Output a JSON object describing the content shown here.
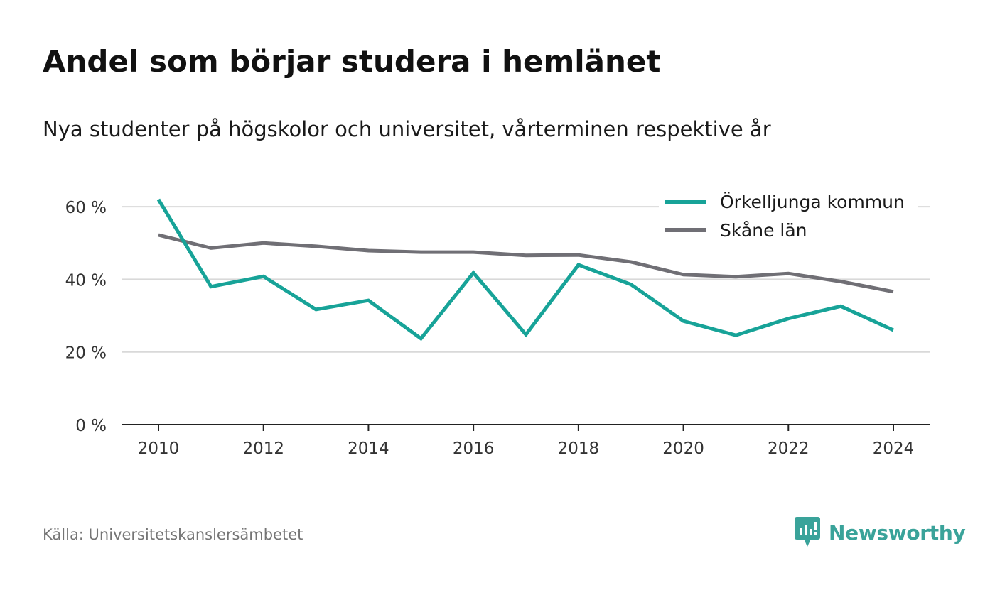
{
  "header": {
    "title": "Andel som börjar studera i hemlänet",
    "subtitle": "Nya studenter på högskolor och universitet, vårterminen respektive år"
  },
  "footer": {
    "source": "Källa: Universitetskanslersämbetet",
    "brand": "Newsworthy",
    "brand_icon": "newsworthy-logo-icon"
  },
  "colors": {
    "orkelljunga": "#17a398",
    "skane": "#706f75",
    "grid": "#d9d9d9",
    "axis": "#222222",
    "brand": "#3aa39a"
  },
  "chart_data": {
    "type": "line",
    "x": [
      2010,
      2011,
      2012,
      2013,
      2014,
      2015,
      2016,
      2017,
      2018,
      2019,
      2020,
      2021,
      2022,
      2023,
      2024
    ],
    "series": [
      {
        "name": "Örkelljunga kommun",
        "color": "#17a398",
        "values": [
          62,
          38,
          40.8,
          31.7,
          34.2,
          23.7,
          41.8,
          24.8,
          44,
          38.6,
          28.5,
          24.6,
          29.2,
          32.6,
          26
        ]
      },
      {
        "name": "Skåne län",
        "color": "#706f75",
        "values": [
          52.2,
          48.6,
          50,
          49.1,
          47.9,
          47.5,
          47.5,
          46.6,
          46.7,
          44.8,
          41.3,
          40.7,
          41.6,
          39.4,
          36.6
        ]
      }
    ],
    "xticks": [
      "2010",
      "2012",
      "2014",
      "2016",
      "2018",
      "2020",
      "2022",
      "2024"
    ],
    "yticks": [
      "0 %",
      "20 %",
      "40 %",
      "60 %"
    ],
    "ytick_values": [
      0,
      20,
      40,
      60
    ],
    "ylim": [
      0,
      70
    ],
    "xlim": [
      2009.3,
      2024.7
    ],
    "grid": true,
    "legend_position": "top-right"
  }
}
